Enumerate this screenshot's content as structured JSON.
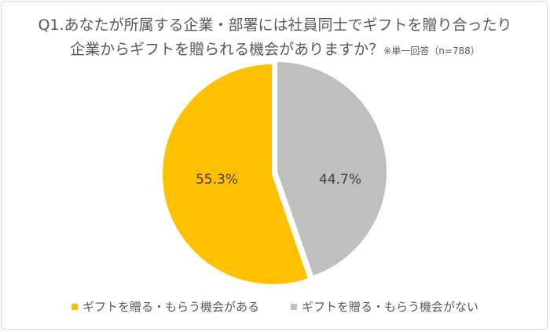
{
  "chart_data": {
    "type": "pie",
    "title_line1": "Q1.あなたが所属する企業・部署には社員同士でギフトを贈り合ったり",
    "title_line2": "企業からギフトを贈られる機会がありますか？",
    "note": "※単一回答（n=788）",
    "categories": [
      "ギフトを贈る・もらう機会がある",
      "ギフトを贈る・もらう機会がない"
    ],
    "values": [
      55.3,
      44.7
    ],
    "labels": [
      "55.3%",
      "44.7%"
    ],
    "colors": [
      "#FFC000",
      "#BFBFBF"
    ],
    "legend_position": "bottom"
  }
}
